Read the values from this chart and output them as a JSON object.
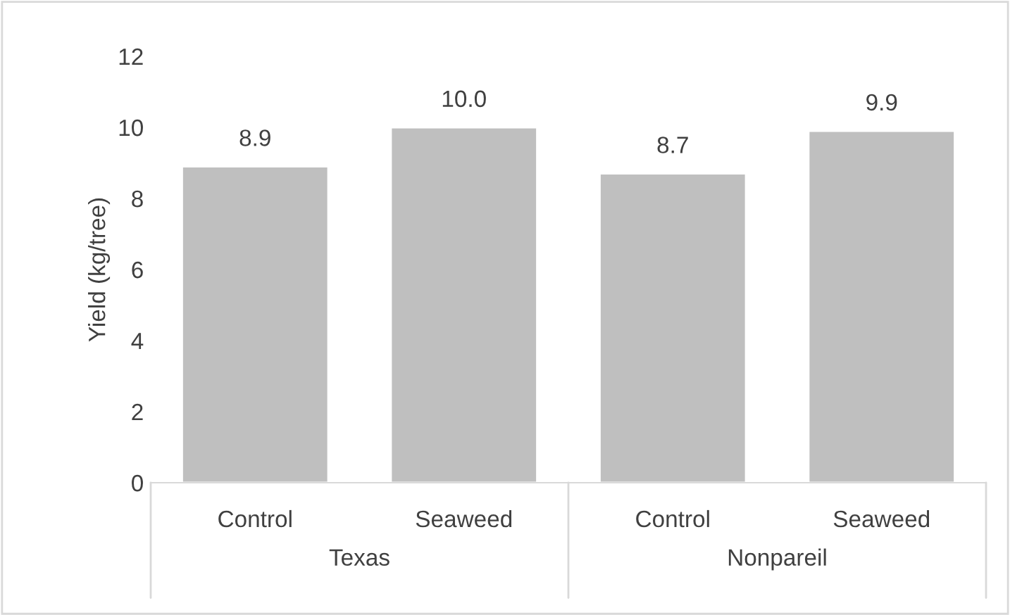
{
  "chart_data": {
    "type": "bar",
    "ylabel": "Yield (kg/tree)",
    "categories": [
      "Control",
      "Seaweed",
      "Control",
      "Seaweed"
    ],
    "values": [
      8.9,
      10.0,
      8.7,
      9.9
    ],
    "value_labels": [
      "8.9",
      "10.0",
      "8.7",
      "9.9"
    ],
    "color": "#bfbfbf",
    "ylim": [
      0,
      12
    ],
    "yticks": [
      0,
      2,
      4,
      6,
      8,
      10,
      12
    ],
    "grid": false,
    "legend": false,
    "annotations": [
      "Texas",
      "Nonpareil"
    ]
  }
}
